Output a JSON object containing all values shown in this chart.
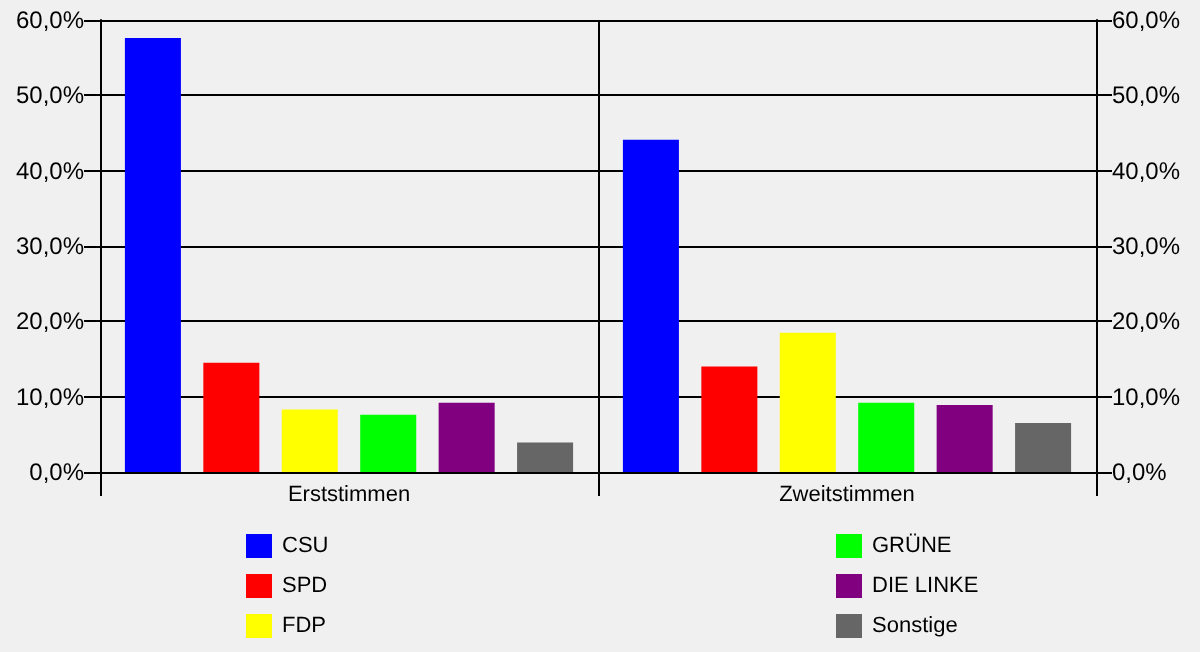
{
  "chart_data": {
    "type": "bar",
    "categories": [
      "Erststimmen",
      "Zweitstimmen"
    ],
    "series": [
      {
        "name": "CSU",
        "color": "#0000ff",
        "values": [
          57.6,
          44.1
        ]
      },
      {
        "name": "SPD",
        "color": "#ff0000",
        "values": [
          14.5,
          14.0
        ]
      },
      {
        "name": "FDP",
        "color": "#ffff00",
        "values": [
          8.3,
          18.5
        ]
      },
      {
        "name": "GRÜNE",
        "color": "#00ff00",
        "values": [
          7.6,
          9.2
        ]
      },
      {
        "name": "DIE LINKE",
        "color": "#800080",
        "values": [
          9.2,
          8.9
        ]
      },
      {
        "name": "Sonstige",
        "color": "#666666",
        "values": [
          3.9,
          6.5
        ]
      }
    ],
    "ylim": [
      0,
      60
    ],
    "yticks": [
      {
        "value": 0,
        "label": "0,0%"
      },
      {
        "value": 10,
        "label": "10,0%"
      },
      {
        "value": 20,
        "label": "20,0%"
      },
      {
        "value": 30,
        "label": "30,0%"
      },
      {
        "value": 40,
        "label": "40,0%"
      },
      {
        "value": 50,
        "label": "50,0%"
      },
      {
        "value": 60,
        "label": "60,0%"
      }
    ],
    "y2lim": [
      0,
      60
    ],
    "y2ticks": [
      {
        "value": 0,
        "label": "0,0%"
      },
      {
        "value": 10,
        "label": "10,0%"
      },
      {
        "value": 20,
        "label": "20,0%"
      },
      {
        "value": 30,
        "label": "30,0%"
      },
      {
        "value": 40,
        "label": "40,0%"
      },
      {
        "value": 50,
        "label": "50,0%"
      },
      {
        "value": 60,
        "label": "60,0%"
      }
    ],
    "grid": true,
    "legend": "bottom"
  }
}
